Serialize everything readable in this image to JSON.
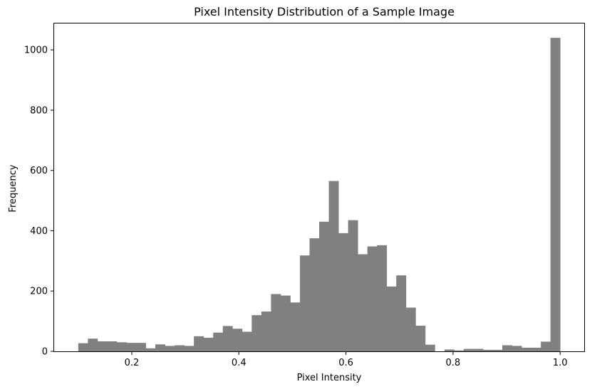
{
  "chart_data": {
    "type": "bar",
    "subtype": "histogram",
    "title": "Pixel Intensity Distribution of a Sample Image",
    "xlabel": "Pixel Intensity",
    "ylabel": "Frequency",
    "xlim": [
      0.055,
      1.045
    ],
    "ylim": [
      0,
      1090
    ],
    "bar_color": "#808080",
    "grid": false,
    "xticks": [
      0.2,
      0.4,
      0.6,
      0.8,
      1.0
    ],
    "xtick_labels": [
      "0.2",
      "0.4",
      "0.6",
      "0.8",
      "1.0"
    ],
    "yticks": [
      0,
      200,
      400,
      600,
      800,
      1000
    ],
    "ytick_labels": [
      "0",
      "200",
      "400",
      "600",
      "800",
      "1000"
    ],
    "bin_start": 0.1,
    "bin_end": 1.0,
    "bin_width": 0.018,
    "counts": [
      27,
      42,
      33,
      33,
      30,
      28,
      28,
      10,
      23,
      18,
      20,
      18,
      50,
      45,
      62,
      84,
      75,
      65,
      120,
      132,
      190,
      185,
      162,
      318,
      375,
      430,
      565,
      392,
      435,
      322,
      348,
      352,
      215,
      252,
      145,
      85,
      22,
      0,
      6,
      3,
      8,
      8,
      5,
      5,
      20,
      18,
      12,
      12,
      32,
      1040
    ]
  }
}
